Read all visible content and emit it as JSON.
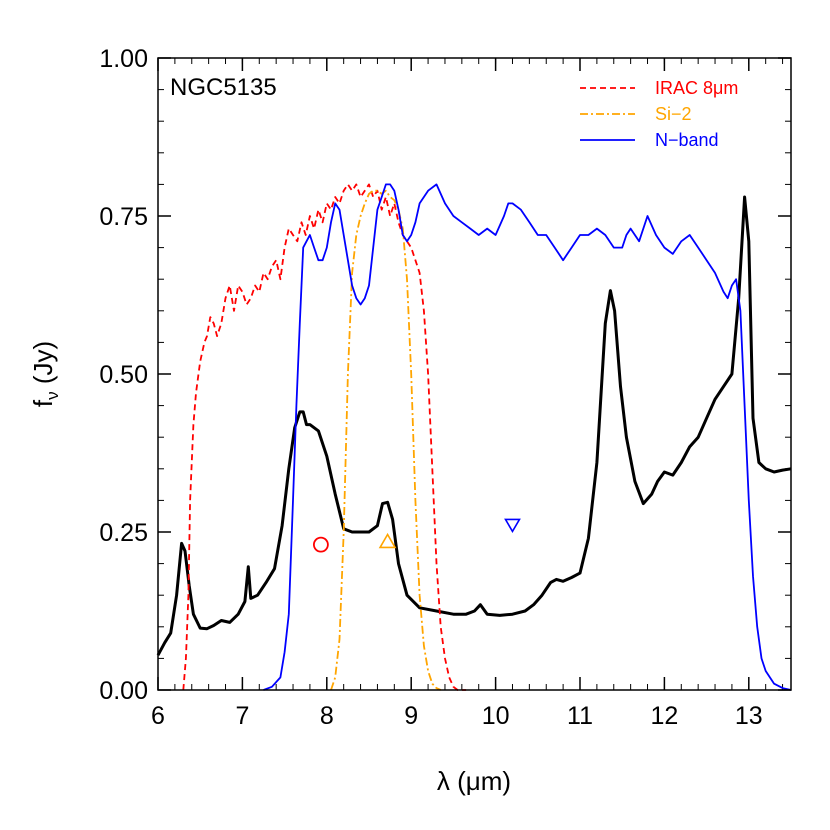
{
  "chart_data": {
    "type": "line",
    "title": "",
    "annotation": "NGC5135",
    "xlabel": "λ (μm)",
    "ylabel_main": "f",
    "ylabel_sub": "ν",
    "ylabel_unit": " (Jy)",
    "xlim": [
      6,
      13.5
    ],
    "ylim": [
      0,
      1.0
    ],
    "x_ticks": [
      6,
      7,
      8,
      9,
      10,
      11,
      12,
      13
    ],
    "x_tick_labels": [
      "6",
      "7",
      "8",
      "9",
      "10",
      "11",
      "12",
      "13"
    ],
    "y_ticks": [
      0,
      0.25,
      0.5,
      0.75,
      1.0
    ],
    "y_tick_labels": [
      "0.00",
      "0.25",
      "0.50",
      "0.75",
      "1.00"
    ],
    "x_minor_step": 0.2,
    "y_minor_step": 0.05,
    "legend_position": "top-right",
    "series": [
      {
        "name": "spectrum",
        "label": "",
        "color": "#000000",
        "style": "solid",
        "width": 3,
        "x": [
          6.0,
          6.08,
          6.15,
          6.22,
          6.28,
          6.32,
          6.37,
          6.42,
          6.5,
          6.58,
          6.66,
          6.75,
          6.85,
          6.95,
          7.03,
          7.07,
          7.1,
          7.18,
          7.28,
          7.38,
          7.47,
          7.55,
          7.62,
          7.68,
          7.72,
          7.76,
          7.8,
          7.9,
          8.0,
          8.1,
          8.2,
          8.3,
          8.4,
          8.5,
          8.6,
          8.66,
          8.72,
          8.78,
          8.85,
          8.95,
          9.1,
          9.3,
          9.5,
          9.65,
          9.75,
          9.82,
          9.9,
          10.05,
          10.2,
          10.35,
          10.45,
          10.55,
          10.65,
          10.72,
          10.8,
          10.9,
          11.0,
          11.1,
          11.2,
          11.3,
          11.36,
          11.41,
          11.48,
          11.55,
          11.65,
          11.75,
          11.85,
          11.92,
          12.0,
          12.1,
          12.2,
          12.3,
          12.4,
          12.5,
          12.6,
          12.7,
          12.8,
          12.88,
          12.95,
          13.0,
          13.05,
          13.12,
          13.2,
          13.3,
          13.4,
          13.5
        ],
        "y": [
          0.055,
          0.075,
          0.09,
          0.15,
          0.232,
          0.22,
          0.165,
          0.12,
          0.098,
          0.097,
          0.102,
          0.11,
          0.107,
          0.12,
          0.14,
          0.195,
          0.145,
          0.15,
          0.17,
          0.192,
          0.26,
          0.35,
          0.415,
          0.44,
          0.44,
          0.42,
          0.42,
          0.41,
          0.37,
          0.31,
          0.255,
          0.25,
          0.25,
          0.25,
          0.26,
          0.295,
          0.297,
          0.27,
          0.2,
          0.15,
          0.13,
          0.125,
          0.12,
          0.12,
          0.125,
          0.135,
          0.12,
          0.118,
          0.12,
          0.125,
          0.135,
          0.15,
          0.17,
          0.175,
          0.172,
          0.178,
          0.185,
          0.24,
          0.36,
          0.58,
          0.632,
          0.6,
          0.48,
          0.4,
          0.33,
          0.295,
          0.31,
          0.33,
          0.345,
          0.34,
          0.36,
          0.385,
          0.4,
          0.43,
          0.46,
          0.48,
          0.5,
          0.62,
          0.78,
          0.71,
          0.43,
          0.36,
          0.35,
          0.345,
          0.348,
          0.35
        ]
      },
      {
        "name": "irac-8um",
        "label": "IRAC 8μm",
        "color": "#ff0000",
        "style": "dashed",
        "width": 1.8,
        "x": [
          6.3,
          6.33,
          6.36,
          6.38,
          6.42,
          6.45,
          6.48,
          6.5,
          6.55,
          6.58,
          6.62,
          6.66,
          6.7,
          6.75,
          6.8,
          6.85,
          6.9,
          6.95,
          7.0,
          7.05,
          7.1,
          7.15,
          7.2,
          7.25,
          7.3,
          7.35,
          7.4,
          7.45,
          7.5,
          7.55,
          7.6,
          7.65,
          7.7,
          7.75,
          7.8,
          7.85,
          7.9,
          7.95,
          8.0,
          8.05,
          8.1,
          8.15,
          8.2,
          8.25,
          8.3,
          8.35,
          8.4,
          8.45,
          8.5,
          8.55,
          8.6,
          8.65,
          8.7,
          8.75,
          8.8,
          8.85,
          8.9,
          8.95,
          9.0,
          9.05,
          9.1,
          9.15,
          9.2,
          9.25,
          9.3,
          9.35,
          9.4,
          9.45,
          9.5,
          9.55,
          9.6,
          9.65
        ],
        "y": [
          0.0,
          0.05,
          0.15,
          0.3,
          0.42,
          0.47,
          0.5,
          0.52,
          0.55,
          0.56,
          0.59,
          0.58,
          0.56,
          0.58,
          0.62,
          0.64,
          0.6,
          0.64,
          0.63,
          0.61,
          0.62,
          0.64,
          0.63,
          0.66,
          0.65,
          0.67,
          0.68,
          0.65,
          0.7,
          0.73,
          0.72,
          0.71,
          0.74,
          0.72,
          0.75,
          0.73,
          0.76,
          0.74,
          0.77,
          0.76,
          0.78,
          0.77,
          0.79,
          0.8,
          0.79,
          0.8,
          0.78,
          0.79,
          0.8,
          0.78,
          0.79,
          0.76,
          0.78,
          0.75,
          0.77,
          0.74,
          0.72,
          0.71,
          0.7,
          0.68,
          0.66,
          0.6,
          0.5,
          0.35,
          0.2,
          0.1,
          0.05,
          0.02,
          0.005,
          0.0,
          0.0,
          0.0
        ]
      },
      {
        "name": "si-2",
        "label": "Si−2",
        "color": "#ffa500",
        "style": "dashdot",
        "width": 1.8,
        "x": [
          8.05,
          8.1,
          8.15,
          8.2,
          8.25,
          8.3,
          8.35,
          8.4,
          8.45,
          8.5,
          8.55,
          8.6,
          8.65,
          8.7,
          8.75,
          8.8,
          8.85,
          8.9,
          8.95,
          9.0,
          9.05,
          9.1,
          9.15,
          9.2,
          9.25,
          9.3,
          9.35
        ],
        "y": [
          0.0,
          0.02,
          0.08,
          0.25,
          0.5,
          0.66,
          0.72,
          0.75,
          0.77,
          0.785,
          0.79,
          0.79,
          0.785,
          0.79,
          0.78,
          0.775,
          0.76,
          0.73,
          0.65,
          0.5,
          0.3,
          0.15,
          0.07,
          0.03,
          0.01,
          0.003,
          0.0
        ]
      },
      {
        "name": "n-band",
        "label": "N−band",
        "color": "#0000ff",
        "style": "solid",
        "width": 1.8,
        "x": [
          7.25,
          7.35,
          7.45,
          7.5,
          7.55,
          7.6,
          7.64,
          7.68,
          7.72,
          7.76,
          7.8,
          7.85,
          7.9,
          7.95,
          8.0,
          8.05,
          8.1,
          8.15,
          8.2,
          8.25,
          8.3,
          8.35,
          8.4,
          8.45,
          8.5,
          8.55,
          8.6,
          8.65,
          8.7,
          8.75,
          8.8,
          8.85,
          8.9,
          8.95,
          9.0,
          9.05,
          9.1,
          9.2,
          9.3,
          9.4,
          9.5,
          9.6,
          9.7,
          9.8,
          9.9,
          10.0,
          10.1,
          10.15,
          10.2,
          10.3,
          10.4,
          10.5,
          10.6,
          10.7,
          10.8,
          10.9,
          11.0,
          11.1,
          11.2,
          11.3,
          11.4,
          11.5,
          11.55,
          11.6,
          11.7,
          11.8,
          11.9,
          12.0,
          12.1,
          12.2,
          12.3,
          12.4,
          12.5,
          12.6,
          12.7,
          12.75,
          12.8,
          12.85,
          12.9,
          12.95,
          13.0,
          13.05,
          13.1,
          13.15,
          13.2,
          13.3,
          13.4,
          13.5
        ],
        "y": [
          0.0,
          0.005,
          0.02,
          0.06,
          0.12,
          0.3,
          0.45,
          0.58,
          0.7,
          0.71,
          0.72,
          0.7,
          0.68,
          0.68,
          0.7,
          0.74,
          0.77,
          0.76,
          0.72,
          0.68,
          0.64,
          0.62,
          0.61,
          0.62,
          0.64,
          0.7,
          0.76,
          0.78,
          0.8,
          0.8,
          0.79,
          0.76,
          0.72,
          0.71,
          0.72,
          0.74,
          0.77,
          0.79,
          0.8,
          0.77,
          0.75,
          0.74,
          0.73,
          0.72,
          0.73,
          0.72,
          0.75,
          0.77,
          0.77,
          0.76,
          0.74,
          0.72,
          0.72,
          0.7,
          0.68,
          0.7,
          0.72,
          0.72,
          0.73,
          0.72,
          0.7,
          0.7,
          0.72,
          0.73,
          0.71,
          0.75,
          0.72,
          0.7,
          0.69,
          0.71,
          0.72,
          0.7,
          0.68,
          0.66,
          0.63,
          0.62,
          0.64,
          0.65,
          0.6,
          0.45,
          0.3,
          0.18,
          0.1,
          0.05,
          0.03,
          0.01,
          0.003,
          0.0
        ]
      }
    ],
    "markers": [
      {
        "name": "irac-photometry-point",
        "shape": "circle",
        "x": 7.93,
        "y": 0.23,
        "color": "#ff0000"
      },
      {
        "name": "si2-photometry-point",
        "shape": "triangle-up",
        "x": 8.72,
        "y": 0.235,
        "color": "#ffa500"
      },
      {
        "name": "nband-upper-limit",
        "shape": "triangle-down",
        "x": 10.2,
        "y": 0.262,
        "color": "#0000ff"
      }
    ]
  }
}
